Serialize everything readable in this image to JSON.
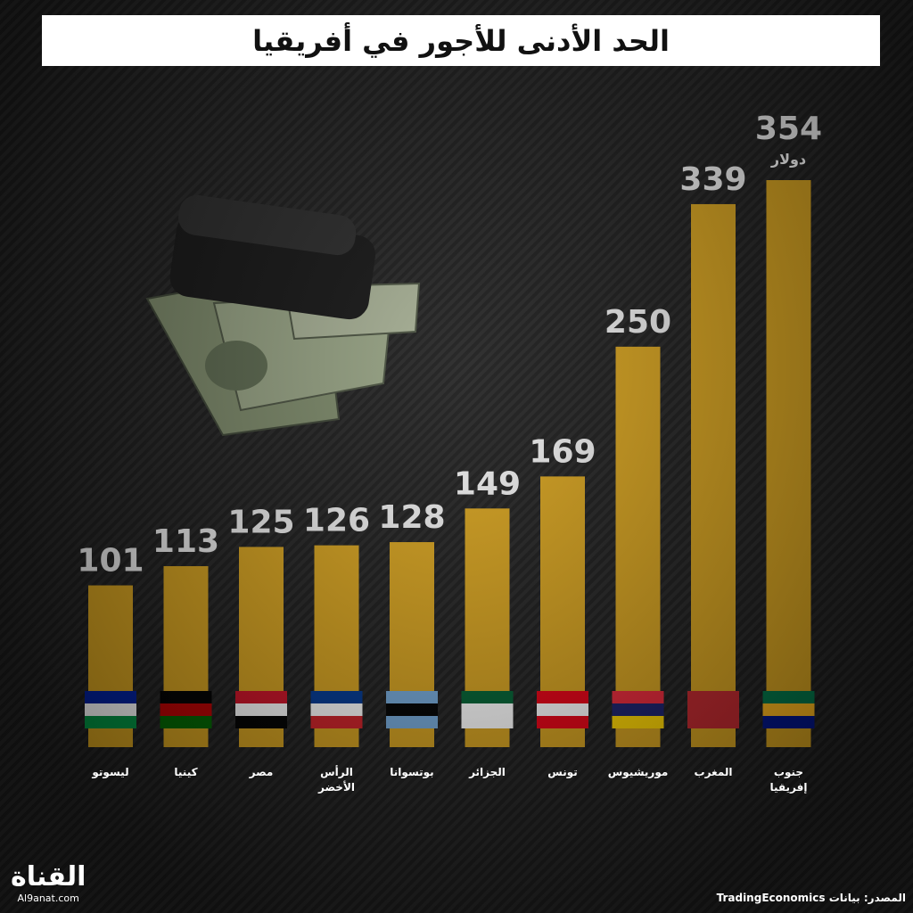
{
  "chart_data": {
    "type": "bar",
    "title": "الحد الأدنى للأجور في أفريقيا",
    "categories": [
      "ليسوتو",
      "كينيا",
      "مصر",
      "الرأس الأخضر",
      "بوتسوانا",
      "الجزائر",
      "تونس",
      "موريشيوس",
      "المغرب",
      "جنوب إفريقيا"
    ],
    "values": [
      101,
      113,
      125,
      126,
      128,
      149,
      169,
      250,
      339,
      354
    ],
    "unit_label": "دولار",
    "color": "#d6a21e",
    "source": "المصدر: بيانات TradingEconomics",
    "logo": {
      "name": "القناة",
      "site": "Al9anat.com"
    }
  }
}
